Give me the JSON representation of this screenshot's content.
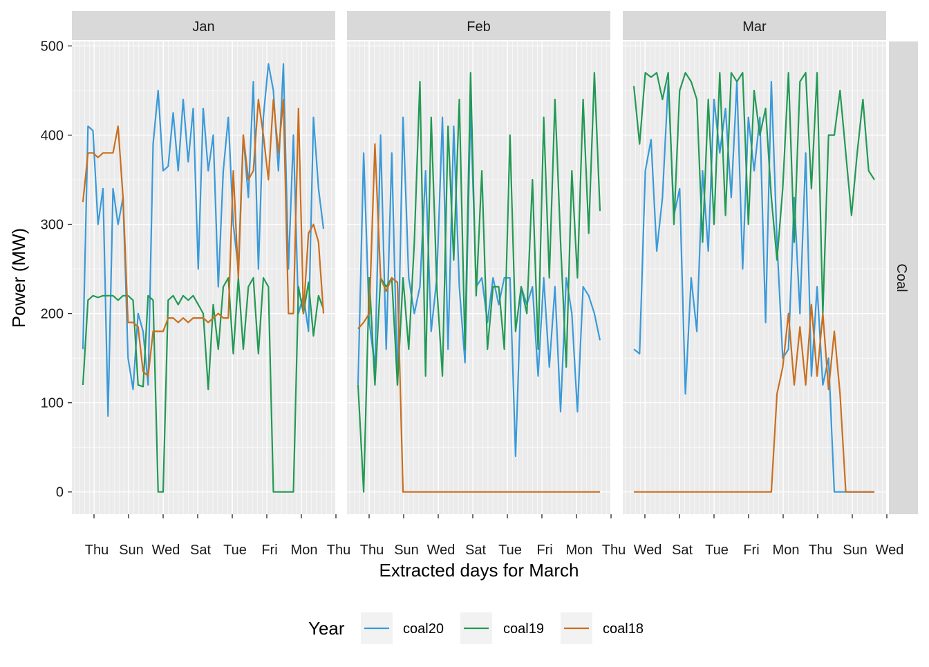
{
  "chart_data": {
    "type": "line",
    "xlabel": "Extracted days for March",
    "ylabel": "Power (MW)",
    "ylim": [
      -25,
      505
    ],
    "y_ticks": [
      0,
      100,
      200,
      300,
      400,
      500
    ],
    "facet_row": "Coal",
    "grid": true,
    "legend": {
      "title": "Year",
      "position": "bottom",
      "entries": [
        "coal20",
        "coal19",
        "coal18"
      ]
    },
    "colors": {
      "coal20": "#3a9ad9",
      "coal19": "#229954",
      "coal18": "#ca6f1e"
    },
    "panels": [
      {
        "title": "Jan",
        "x_ticks": [
          "Thu",
          "Sun",
          "Wed",
          "Sat",
          "Tue",
          "Fri",
          "Mon",
          "Thu"
        ],
        "series": [
          {
            "name": "coal20",
            "values": [
              160,
              410,
              405,
              300,
              340,
              85,
              340,
              300,
              330,
              150,
              115,
              200,
              180,
              120,
              390,
              450,
              360,
              365,
              425,
              360,
              440,
              370,
              430,
              250,
              430,
              360,
              400,
              230,
              360,
              420,
              300,
              250,
              400,
              330,
              460,
              250,
              420,
              480,
              450,
              360,
              480,
              250,
              400,
              200,
              220,
              180,
              420,
              340,
              295
            ]
          },
          {
            "name": "coal19",
            "values": [
              120,
              215,
              220,
              218,
              220,
              220,
              220,
              215,
              220,
              220,
              215,
              120,
              118,
              220,
              215,
              0,
              0,
              215,
              220,
              210,
              220,
              215,
              220,
              210,
              200,
              115,
              210,
              160,
              230,
              240,
              155,
              240,
              160,
              230,
              240,
              155,
              240,
              230,
              0,
              0,
              0,
              0,
              0,
              230,
              200,
              235,
              175,
              220,
              205
            ]
          },
          {
            "name": "coal18",
            "values": [
              325,
              380,
              380,
              375,
              380,
              380,
              380,
              410,
              330,
              190,
              190,
              185,
              135,
              130,
              180,
              180,
              180,
              195,
              195,
              190,
              195,
              190,
              195,
              195,
              195,
              190,
              195,
              200,
              195,
              195,
              360,
              240,
              400,
              350,
              360,
              440,
              400,
              350,
              440,
              380,
              440,
              200,
              200,
              430,
              200,
              290,
              300,
              280,
              200
            ]
          }
        ]
      },
      {
        "title": "Feb",
        "x_ticks": [
          "Thu",
          "Sun",
          "Wed",
          "Sat",
          "Tue",
          "Fri",
          "Mon",
          "Thu"
        ],
        "series": [
          {
            "name": "coal20",
            "values": [
              120,
              380,
              190,
              140,
              400,
              160,
              380,
              120,
              420,
              240,
              200,
              230,
              360,
              180,
              240,
              420,
              160,
              410,
              230,
              145,
              430,
              230,
              240,
              190,
              240,
              210,
              240,
              240,
              40,
              230,
              210,
              230,
              130,
              240,
              140,
              230,
              90,
              240,
              200,
              90,
              230,
              220,
              200,
              170
            ]
          },
          {
            "name": "coal19",
            "values": [
              120,
              0,
              240,
              120,
              240,
              230,
              240,
              120,
              240,
              160,
              280,
              460,
              130,
              420,
              230,
              130,
              410,
              260,
              440,
              160,
              470,
              220,
              360,
              160,
              230,
              230,
              160,
              400,
              180,
              230,
              200,
              350,
              160,
              420,
              240,
              440,
              280,
              140,
              360,
              240,
              440,
              290,
              470,
              315
            ]
          },
          {
            "name": "coal18",
            "values": [
              183,
              190,
              200,
              390,
              240,
              225,
              240,
              235,
              0,
              0,
              0,
              0,
              0,
              0,
              0,
              0,
              0,
              0,
              0,
              0,
              0,
              0,
              0,
              0,
              0,
              0,
              0,
              0,
              0,
              0,
              0,
              0,
              0,
              0,
              0,
              0,
              0,
              0,
              0,
              0,
              0,
              0,
              0,
              0
            ]
          }
        ]
      },
      {
        "title": "Mar",
        "x_ticks": [
          "Wed",
          "Sat",
          "Tue",
          "Fri",
          "Mon",
          "Thu",
          "Sun",
          "Wed"
        ],
        "series": [
          {
            "name": "coal20",
            "values": [
              160,
              155,
              360,
              395,
              270,
              330,
              460,
              310,
              340,
              110,
              240,
              180,
              360,
              270,
              440,
              380,
              430,
              330,
              460,
              250,
              420,
              360,
              420,
              190,
              460,
              280,
              150,
              160,
              330,
              200,
              380,
              130,
              230,
              120,
              150,
              0,
              0,
              0,
              0,
              0,
              0,
              0,
              0
            ]
          },
          {
            "name": "coal19",
            "values": [
              455,
              390,
              470,
              465,
              470,
              440,
              470,
              300,
              450,
              470,
              460,
              440,
              280,
              440,
              300,
              470,
              310,
              470,
              460,
              470,
              300,
              450,
              400,
              430,
              330,
              260,
              340,
              470,
              280,
              460,
              470,
              340,
              470,
              200,
              400,
              400,
              450,
              380,
              310,
              380,
              440,
              360,
              350
            ]
          },
          {
            "name": "coal18",
            "values": [
              0,
              0,
              0,
              0,
              0,
              0,
              0,
              0,
              0,
              0,
              0,
              0,
              0,
              0,
              0,
              0,
              0,
              0,
              0,
              0,
              0,
              0,
              0,
              0,
              0,
              110,
              140,
              200,
              120,
              185,
              120,
              210,
              130,
              200,
              115,
              180,
              110,
              0,
              0,
              0,
              0,
              0,
              0
            ]
          }
        ]
      }
    ]
  }
}
